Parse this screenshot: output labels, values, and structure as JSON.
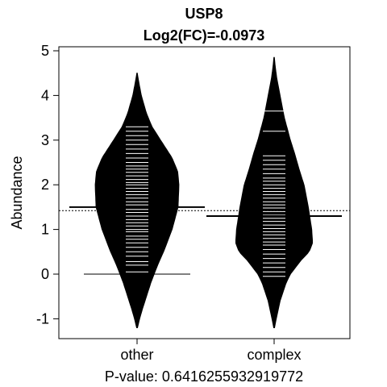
{
  "chart_data": {
    "type": "beanplot",
    "title": "USP8",
    "subtitle": "Log2(FC)=-0.0973",
    "ylabel": "Abundance",
    "xlabel": "P-value: 0.6416255932919772",
    "categories": [
      "other",
      "complex"
    ],
    "ylim": [
      -1.45,
      5.1
    ],
    "yticks": [
      -1,
      0,
      1,
      2,
      3,
      4,
      5
    ],
    "overall_mean": 1.42,
    "groups": [
      {
        "name": "other",
        "mean": 1.5,
        "zero_line": 0,
        "range": [
          -1.2,
          4.5
        ],
        "density": [
          [
            -1.2,
            0.01
          ],
          [
            -1.0,
            0.06
          ],
          [
            -0.8,
            0.12
          ],
          [
            -0.5,
            0.22
          ],
          [
            -0.2,
            0.32
          ],
          [
            0.0,
            0.4
          ],
          [
            0.2,
            0.48
          ],
          [
            0.5,
            0.62
          ],
          [
            1.0,
            0.82
          ],
          [
            1.5,
            0.96
          ],
          [
            2.0,
            0.98
          ],
          [
            2.3,
            0.95
          ],
          [
            2.6,
            0.82
          ],
          [
            3.0,
            0.55
          ],
          [
            3.3,
            0.35
          ],
          [
            3.6,
            0.22
          ],
          [
            4.0,
            0.1
          ],
          [
            4.3,
            0.04
          ],
          [
            4.5,
            0.005
          ]
        ],
        "points": [
          0.05,
          0.2,
          0.28,
          0.4,
          0.5,
          0.6,
          0.7,
          0.78,
          0.85,
          0.95,
          1.0,
          1.08,
          1.15,
          1.22,
          1.3,
          1.38,
          1.45,
          1.5,
          1.55,
          1.62,
          1.7,
          1.78,
          1.85,
          1.92,
          2.0,
          2.05,
          2.12,
          2.2,
          2.28,
          2.35,
          2.42,
          2.5,
          2.6,
          2.7,
          2.8,
          2.9,
          3.0,
          3.1,
          3.2,
          3.3
        ]
      },
      {
        "name": "complex",
        "mean": 1.3,
        "zero_line": null,
        "range": [
          -1.2,
          4.85
        ],
        "density": [
          [
            -1.2,
            0.01
          ],
          [
            -1.0,
            0.05
          ],
          [
            -0.6,
            0.14
          ],
          [
            -0.2,
            0.28
          ],
          [
            0.0,
            0.38
          ],
          [
            0.3,
            0.62
          ],
          [
            0.5,
            0.82
          ],
          [
            0.7,
            0.9
          ],
          [
            1.0,
            0.88
          ],
          [
            1.5,
            0.8
          ],
          [
            2.0,
            0.7
          ],
          [
            2.3,
            0.6
          ],
          [
            2.7,
            0.48
          ],
          [
            3.0,
            0.38
          ],
          [
            3.5,
            0.24
          ],
          [
            4.0,
            0.14
          ],
          [
            4.4,
            0.06
          ],
          [
            4.7,
            0.02
          ],
          [
            4.85,
            0.005
          ]
        ],
        "points": [
          -0.05,
          0.05,
          0.15,
          0.25,
          0.35,
          0.45,
          0.55,
          0.65,
          0.72,
          0.8,
          0.88,
          0.95,
          1.02,
          1.1,
          1.18,
          1.25,
          1.32,
          1.4,
          1.48,
          1.55,
          1.62,
          1.7,
          1.78,
          1.85,
          1.92,
          2.0,
          2.08,
          2.15,
          2.25,
          2.35,
          2.45,
          2.55,
          2.65,
          3.2,
          3.65
        ]
      }
    ]
  }
}
